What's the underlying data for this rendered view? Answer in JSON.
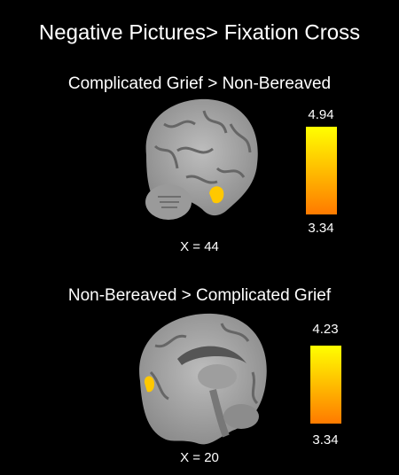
{
  "title": "Negative Pictures> Fixation Cross",
  "panels": [
    {
      "subtitle": "Complicated Grief > Non-Bereaved",
      "max_label": "4.94",
      "min_label": "3.34",
      "coordinate": "X = 44"
    },
    {
      "subtitle": "Non-Bereaved > Complicated Grief",
      "max_label": "4.23",
      "min_label": "3.34",
      "coordinate": "X = 20"
    }
  ]
}
